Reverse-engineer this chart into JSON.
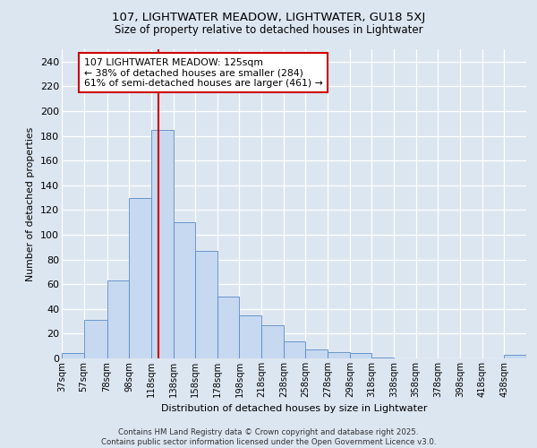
{
  "title_line1": "107, LIGHTWATER MEADOW, LIGHTWATER, GU18 5XJ",
  "title_line2": "Size of property relative to detached houses in Lightwater",
  "xlabel": "Distribution of detached houses by size in Lightwater",
  "ylabel": "Number of detached properties",
  "bar_labels": [
    "37sqm",
    "57sqm",
    "78sqm",
    "98sqm",
    "118sqm",
    "138sqm",
    "158sqm",
    "178sqm",
    "198sqm",
    "218sqm",
    "238sqm",
    "258sqm",
    "278sqm",
    "298sqm",
    "318sqm",
    "338sqm",
    "358sqm",
    "378sqm",
    "398sqm",
    "418sqm",
    "438sqm"
  ],
  "bar_values": [
    4,
    31,
    63,
    130,
    185,
    110,
    87,
    50,
    35,
    27,
    14,
    7,
    5,
    4,
    1,
    0,
    0,
    0,
    0,
    0,
    3
  ],
  "bin_edges": [
    37,
    57,
    78,
    98,
    118,
    138,
    158,
    178,
    198,
    218,
    238,
    258,
    278,
    298,
    318,
    338,
    358,
    378,
    398,
    418,
    438,
    458
  ],
  "bar_color": "#c6d9f0",
  "bar_edge_color": "#5a8ac6",
  "background_color": "#dce6f1",
  "grid_color": "#ffffff",
  "vline_x": 125,
  "vline_color": "#cc0000",
  "annotation_text": "107 LIGHTWATER MEADOW: 125sqm\n← 38% of detached houses are smaller (284)\n61% of semi-detached houses are larger (461) →",
  "annotation_box_color": "white",
  "annotation_box_edge_color": "#cc0000",
  "footer_text": "Contains HM Land Registry data © Crown copyright and database right 2025.\nContains public sector information licensed under the Open Government Licence v3.0.",
  "ylim": [
    0,
    250
  ],
  "yticks": [
    0,
    20,
    40,
    60,
    80,
    100,
    120,
    140,
    160,
    180,
    200,
    220,
    240
  ]
}
